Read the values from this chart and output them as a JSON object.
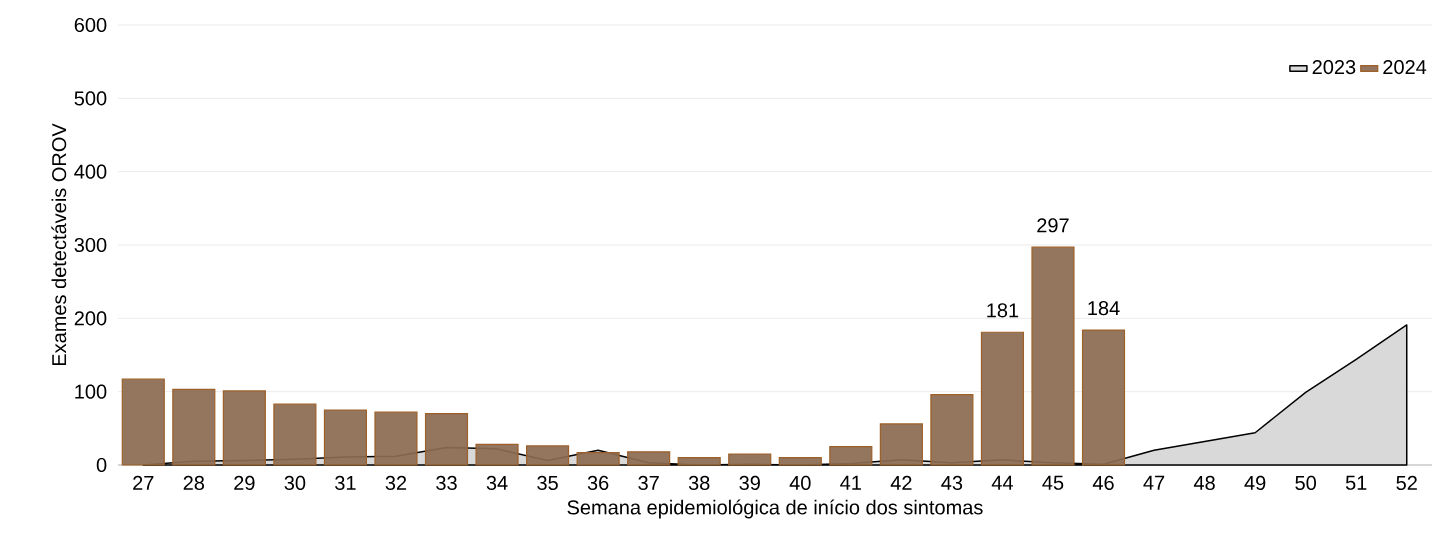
{
  "chart_data": {
    "type": "bar",
    "xlabel": "Semana epidemiológica de início dos sintomas",
    "ylabel": "Exames detectáveis OROV",
    "categories": [
      "27",
      "28",
      "29",
      "30",
      "31",
      "32",
      "33",
      "34",
      "35",
      "36",
      "37",
      "38",
      "39",
      "40",
      "41",
      "42",
      "43",
      "44",
      "45",
      "46",
      "47",
      "48",
      "49",
      "50",
      "51",
      "52"
    ],
    "series": [
      {
        "name": "2023",
        "type": "area",
        "color": "#d9d9d9",
        "values": [
          0,
          5,
          6,
          8,
          11,
          12,
          24,
          22,
          6,
          20,
          3,
          0,
          1,
          0,
          2,
          7,
          3,
          7,
          3,
          1,
          20,
          32,
          44,
          99,
          144,
          191
        ]
      },
      {
        "name": "2024",
        "color": "#8c6a52",
        "values": [
          117,
          103,
          101,
          83,
          75,
          72,
          70,
          28,
          26,
          17,
          18,
          10,
          15,
          10,
          25,
          56,
          96,
          181,
          297,
          184,
          null,
          null,
          null,
          null,
          null,
          null
        ],
        "value_labels": [
          null,
          null,
          null,
          null,
          null,
          null,
          null,
          null,
          null,
          null,
          null,
          null,
          null,
          null,
          null,
          null,
          null,
          "181",
          "297",
          "184",
          null,
          null,
          null,
          null,
          null,
          null
        ]
      }
    ],
    "ylim": [
      0,
      600
    ],
    "yticks": [
      0,
      100,
      200,
      300,
      400,
      500,
      600
    ],
    "grid": "y",
    "legend": "top right"
  }
}
